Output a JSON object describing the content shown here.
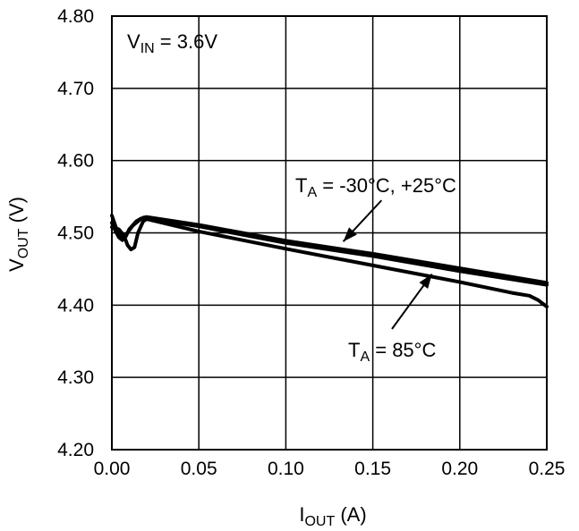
{
  "chart_data": {
    "type": "line",
    "title": "",
    "xlabel": {
      "main": "I",
      "sub": "OUT",
      "suffix": " (A)"
    },
    "ylabel": {
      "main": "V",
      "sub": "OUT",
      "suffix": " (V)"
    },
    "xlim": [
      0,
      0.25
    ],
    "ylim": [
      4.2,
      4.8
    ],
    "grid": true,
    "x_ticks": [
      0,
      0.05,
      0.1,
      0.15,
      0.2,
      0.25
    ],
    "x_tick_labels": [
      "0.00",
      "0.05",
      "0.10",
      "0.15",
      "0.20",
      "0.25"
    ],
    "y_ticks": [
      4.2,
      4.3,
      4.4,
      4.5,
      4.6,
      4.7,
      4.8
    ],
    "y_tick_labels": [
      "4.20",
      "4.30",
      "4.40",
      "4.50",
      "4.60",
      "4.70",
      "4.80"
    ],
    "condition": {
      "main": "V",
      "sub": "IN",
      "suffix": " = 3.6V"
    },
    "series": [
      {
        "name": "TA = -30°C",
        "x": [
          0.0,
          0.002,
          0.004,
          0.006,
          0.008,
          0.012,
          0.016,
          0.018,
          0.02,
          0.05,
          0.1,
          0.15,
          0.2,
          0.25
        ],
        "y": [
          4.524,
          4.51,
          4.497,
          4.492,
          4.497,
          4.51,
          4.518,
          4.521,
          4.522,
          4.511,
          4.489,
          4.471,
          4.451,
          4.431
        ]
      },
      {
        "name": "TA = +25°C",
        "x": [
          0.0,
          0.002,
          0.004,
          0.006,
          0.008,
          0.01,
          0.014,
          0.017,
          0.02,
          0.05,
          0.1,
          0.15,
          0.2,
          0.25
        ],
        "y": [
          4.514,
          4.503,
          4.494,
          4.49,
          4.495,
          4.505,
          4.516,
          4.52,
          4.52,
          4.509,
          4.486,
          4.468,
          4.447,
          4.428
        ]
      },
      {
        "name": "TA = 85°C",
        "x": [
          0.0,
          0.004,
          0.007,
          0.009,
          0.011,
          0.013,
          0.015,
          0.018,
          0.02,
          0.05,
          0.1,
          0.15,
          0.2,
          0.23,
          0.24,
          0.245,
          0.25
        ],
        "y": [
          4.508,
          4.505,
          4.496,
          4.483,
          4.477,
          4.48,
          4.5,
          4.516,
          4.519,
          4.502,
          4.478,
          4.455,
          4.432,
          4.417,
          4.413,
          4.407,
          4.398
        ]
      }
    ],
    "annotations": [
      {
        "id": "cold-room",
        "main": "T",
        "sub": "A",
        "suffix": " = -30°C, +25°C",
        "arrow_from": [
          0.155,
          4.545
        ],
        "arrow_to": [
          0.133,
          4.488
        ]
      },
      {
        "id": "hot",
        "main": "T",
        "sub": "A",
        "suffix": " = 85°C",
        "arrow_from": [
          0.161,
          4.367
        ],
        "arrow_to": [
          0.184,
          4.443
        ]
      }
    ]
  }
}
